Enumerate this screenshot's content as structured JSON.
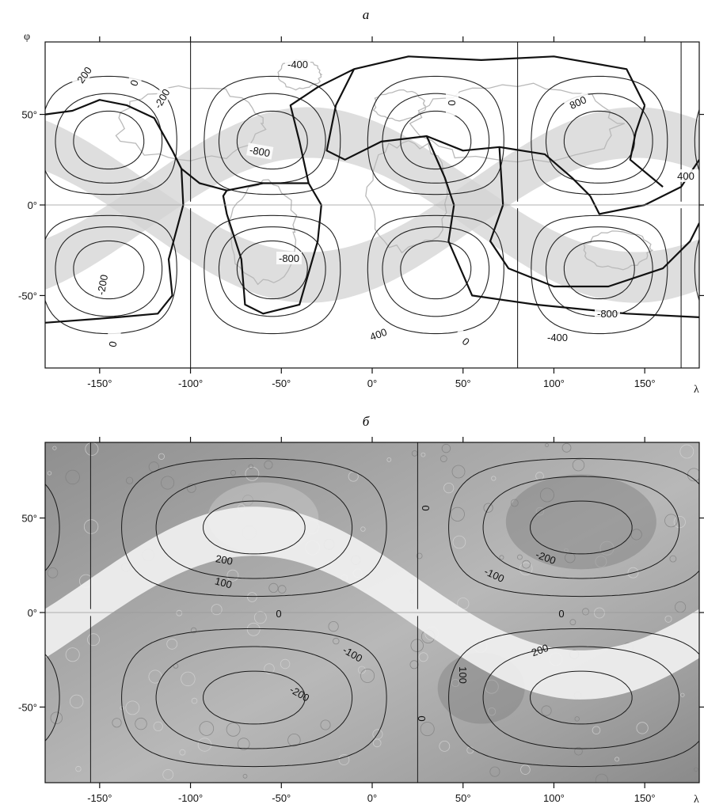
{
  "figure": {
    "panels": [
      {
        "id": "a",
        "letter": "а",
        "background": "earth",
        "contour_levels": [
          -800,
          -600,
          -400,
          -200,
          0,
          200,
          400,
          600,
          800
        ],
        "x_tick_labels": [
          "-150°",
          "-100°",
          "-50°",
          "0°",
          "50°",
          "100°",
          "150°"
        ],
        "y_tick_labels": [
          "50°",
          "0°",
          "-50°"
        ],
        "x_axis_symbol": "λ",
        "y_axis_symbol": "φ",
        "contour_labels": [
          "200",
          "0",
          "-200",
          "-400",
          "0",
          "800",
          "-800",
          "400",
          "-800",
          "-200",
          "0",
          "400",
          "0",
          "-800",
          "-400"
        ],
        "colors": {
          "band": "#d3d3d3",
          "contour": "#222222",
          "plate_boundary": "#111111",
          "coastline": "#b9b9b9"
        }
      },
      {
        "id": "b",
        "letter": "б",
        "background": "mars",
        "contour_levels": [
          -300,
          -200,
          -100,
          0,
          100,
          200,
          300
        ],
        "x_tick_labels": [
          "-150°",
          "-100°",
          "-50°",
          "0°",
          "50°",
          "100°",
          "150°"
        ],
        "y_tick_labels": [
          "50°",
          "0°",
          "-50°"
        ],
        "x_axis_symbol": "λ",
        "contour_labels": [
          "200",
          "100",
          "0",
          "-100",
          "-200",
          "0",
          "0",
          "-200",
          "-100",
          "0",
          "100",
          "200"
        ],
        "colors": {
          "band": "#f2f2f2",
          "contour": "#1a1a1a",
          "terrain_light": "#bdbdbd",
          "terrain_dark": "#7a7a7a"
        }
      }
    ]
  }
}
